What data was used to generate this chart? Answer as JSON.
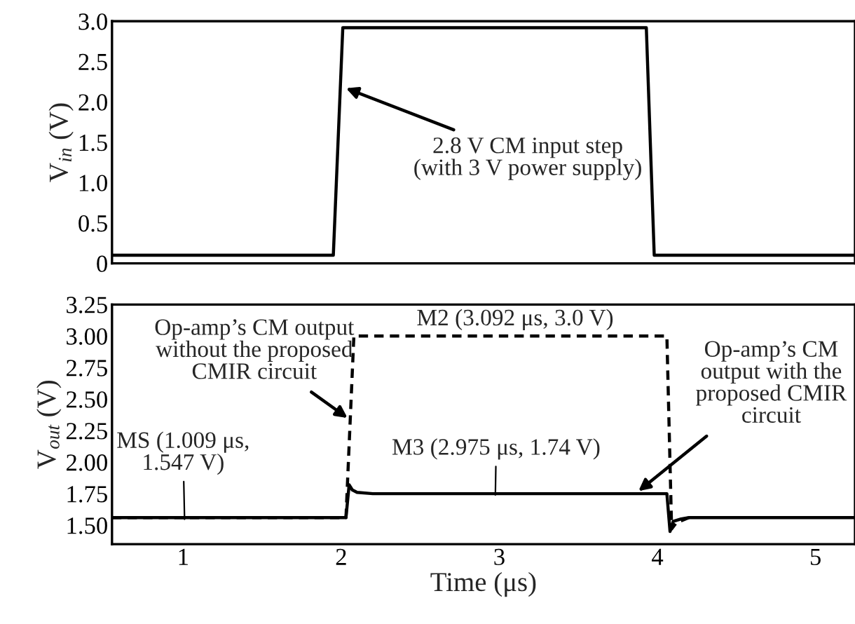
{
  "chart_data": [
    {
      "type": "line",
      "ylabel": "V$_{in}$ (V)",
      "xlim": [
        0.55,
        5.25
      ],
      "xticks": [
        1,
        2,
        3,
        4,
        5
      ],
      "ylim": [
        0,
        3.0
      ],
      "yticks": [
        0,
        0.5,
        {
          "value": 1,
          "label": "1.0"
        },
        1.5,
        {
          "value": 2,
          "label": "2.0"
        },
        2.5,
        {
          "value": 3,
          "label": "3.0"
        }
      ],
      "tick_labels": "y",
      "grid": false,
      "legend": false,
      "series": [
        {
          "color": "#000000",
          "line_style": "solid",
          "x": [
            0.55,
            1.95,
            2.01,
            3.93,
            3.98,
            5.25
          ],
          "values": [
            0.1,
            0.1,
            2.92,
            2.92,
            0.1,
            0.1
          ]
        }
      ],
      "annotations": [
        {
          "text": "2.8 V CM input step\n(with 3 V power supply)",
          "x": 2.03,
          "y": 2.17
        }
      ]
    },
    {
      "type": "line",
      "ylabel": "V$_{out}$ (V)",
      "xlabel": "Time (μs)",
      "xlim": [
        0.55,
        5.25
      ],
      "xticks": [
        1,
        2,
        3,
        4,
        5
      ],
      "ylim": [
        1.35,
        3.25
      ],
      "yticks": [
        {
          "value": 1.5,
          "label": "1.50"
        },
        {
          "value": 1.75,
          "label": "1.75"
        },
        {
          "value": 2.0,
          "label": "2.00"
        },
        {
          "value": 2.25,
          "label": "2.25"
        },
        {
          "value": 2.5,
          "label": "2.50"
        },
        {
          "value": 2.75,
          "label": "2.75"
        },
        {
          "value": 3.0,
          "label": "3.00"
        },
        {
          "value": 3.25,
          "label": "3.25"
        }
      ],
      "grid": false,
      "legend": false,
      "series": [
        {
          "color": "#000000",
          "line_style": "dashed",
          "x": [
            0.55,
            2.03,
            2.08,
            4.06,
            4.09,
            4.12,
            4.2
          ],
          "values": [
            1.56,
            1.56,
            3.0,
            3.0,
            1.47,
            1.52,
            1.56
          ]
        },
        {
          "color": "#000000",
          "line_style": "solid",
          "x": [
            0.55,
            2.03,
            2.05,
            2.07,
            2.1,
            2.2,
            4.06,
            4.07,
            4.08,
            4.1,
            4.15,
            4.2,
            5.25
          ],
          "values": [
            1.56,
            1.56,
            1.82,
            1.78,
            1.76,
            1.75,
            1.75,
            1.6,
            1.45,
            1.53,
            1.55,
            1.56,
            1.56
          ]
        }
      ],
      "annotations": [
        {
          "text": "MS (1.009 μs,\n1.547 V)",
          "x": 1.009,
          "y": 1.547
        },
        {
          "text": "M3 (2.975 μs, 1.74 V)",
          "x": 2.975,
          "y": 1.74
        },
        "M2 (3.092 μs, 3.0 V)",
        {
          "text": "Op-amp’s CM output\nwithout the proposed\nCMIR circuit",
          "x": 2.04,
          "y": 2.35
        },
        {
          "text": "Op-amp’s CM\noutput with the\nproposed CMIR\ncircuit",
          "x": 3.88,
          "y": 1.77
        }
      ]
    }
  ]
}
